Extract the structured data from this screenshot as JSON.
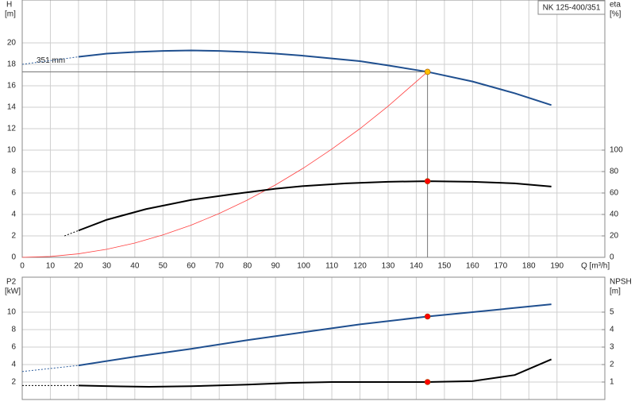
{
  "chart_data": [
    {
      "type": "line",
      "title": "NK 125-400/351",
      "annotation": "351 mm",
      "xlabel": "Q [m³/h]",
      "ylabel": [
        "H",
        "[m]"
      ],
      "y2label": [
        "eta",
        "[%]"
      ],
      "xlim": [
        0,
        207
      ],
      "xticks": [
        0,
        10,
        20,
        30,
        40,
        50,
        60,
        70,
        80,
        90,
        100,
        110,
        120,
        130,
        140,
        150,
        160,
        170,
        180,
        190
      ],
      "xtick_labels": true,
      "ylim": [
        0,
        24
      ],
      "yticks": [
        0,
        2,
        4,
        6,
        8,
        10,
        12,
        14,
        16,
        18,
        20
      ],
      "y2lim": [
        0,
        240
      ],
      "y2ticks": [
        0,
        20,
        40,
        60,
        80,
        100
      ],
      "grid": true,
      "series": [
        {
          "color": "#2f5f9e",
          "dashed": true,
          "x": [
            0,
            10,
            20
          ],
          "values": [
            18.0,
            18.35,
            18.7
          ]
        },
        {
          "color": "#1f4f8f",
          "x": [
            20,
            30,
            40,
            50,
            60,
            70,
            80,
            90,
            100,
            110,
            120,
            130,
            144,
            160,
            175,
            188
          ],
          "values": [
            18.7,
            19.0,
            19.15,
            19.25,
            19.3,
            19.25,
            19.15,
            19.0,
            18.8,
            18.55,
            18.3,
            17.9,
            17.3,
            16.4,
            15.3,
            14.2
          ]
        },
        {
          "color": "#ff4040",
          "thin": true,
          "x": [
            0,
            10,
            20,
            30,
            40,
            50,
            60,
            70,
            80,
            90,
            100,
            110,
            120,
            130,
            144
          ],
          "values": [
            0,
            0.08,
            0.33,
            0.75,
            1.33,
            2.09,
            3.0,
            4.09,
            5.34,
            6.76,
            8.34,
            10.1,
            12.0,
            14.1,
            17.3
          ]
        },
        {
          "color": "#000000",
          "dashed": true,
          "axis": "y2",
          "x": [
            15,
            20
          ],
          "values": [
            20,
            25
          ]
        },
        {
          "color": "#000000",
          "axis": "y2",
          "x": [
            20,
            30,
            44,
            60,
            75,
            90,
            100,
            115,
            130,
            144,
            160,
            175,
            188
          ],
          "values": [
            25,
            35,
            45,
            53.5,
            59,
            64,
            66.5,
            69,
            70.5,
            71,
            70.5,
            69,
            66
          ]
        }
      ],
      "markers": [
        {
          "x": 144,
          "y": 17.3,
          "color": "#ffc000",
          "guides": true
        },
        {
          "x": 144,
          "y": 71,
          "color": "#ff0000",
          "axis": "y2"
        }
      ]
    },
    {
      "type": "line",
      "ylabel": [
        "P2",
        "[kW]"
      ],
      "y2label": [
        "NPSH",
        "[m]"
      ],
      "xlim": [
        0,
        207
      ],
      "xticks": [
        0,
        10,
        20,
        30,
        40,
        50,
        60,
        70,
        80,
        90,
        100,
        110,
        120,
        130,
        140,
        150,
        160,
        170,
        180,
        190
      ],
      "xtick_labels": false,
      "ylim": [
        0,
        14
      ],
      "yticks": [
        2,
        4,
        6,
        8,
        10
      ],
      "y2lim": [
        0,
        7
      ],
      "y2ticks": [
        1,
        2,
        3,
        4,
        5
      ],
      "grid": true,
      "series": [
        {
          "color": "#2f5f9e",
          "dashed": true,
          "x": [
            0,
            20
          ],
          "values": [
            3.2,
            3.9
          ]
        },
        {
          "color": "#1f4f8f",
          "x": [
            20,
            40,
            60,
            80,
            100,
            120,
            144,
            160,
            188
          ],
          "values": [
            3.9,
            4.9,
            5.8,
            6.8,
            7.7,
            8.6,
            9.5,
            10.0,
            10.9
          ]
        },
        {
          "color": "#000000",
          "dashed": true,
          "axis": "y2",
          "x": [
            0,
            20
          ],
          "values": [
            0.8,
            0.8
          ]
        },
        {
          "color": "#000000",
          "axis": "y2",
          "x": [
            20,
            35,
            45,
            60,
            80,
            95,
            110,
            130,
            144,
            160,
            175,
            188
          ],
          "values": [
            0.8,
            0.75,
            0.73,
            0.76,
            0.85,
            0.95,
            1.0,
            1.0,
            1.0,
            1.05,
            1.4,
            2.3
          ]
        }
      ],
      "markers": [
        {
          "x": 144,
          "y": 9.5,
          "color": "#ff0000"
        },
        {
          "x": 144,
          "y": 1.0,
          "color": "#ff0000",
          "axis": "y2"
        }
      ]
    }
  ]
}
